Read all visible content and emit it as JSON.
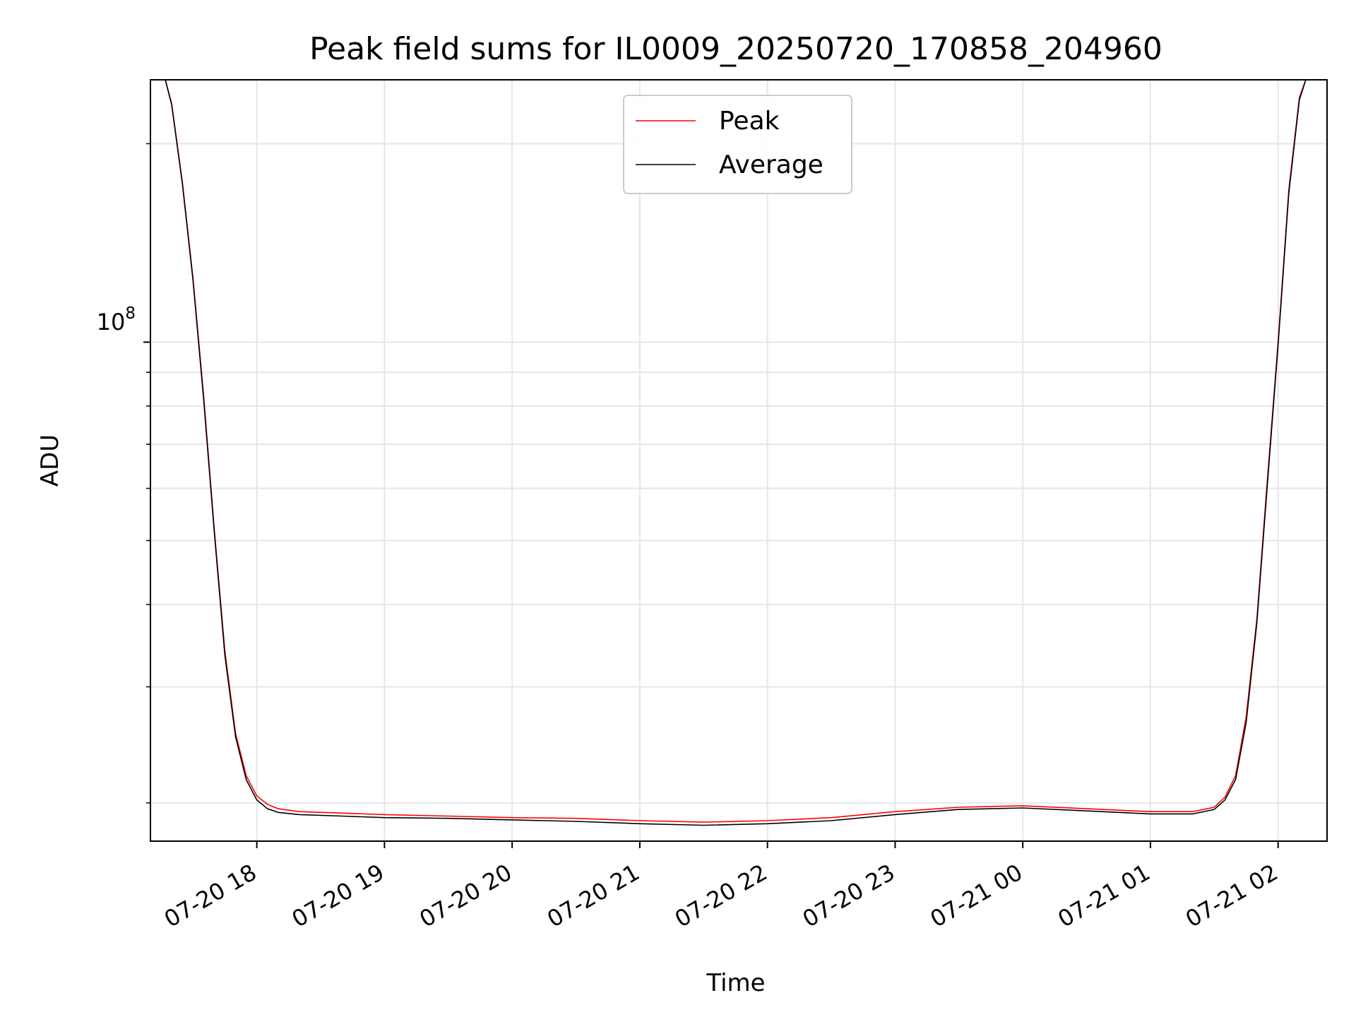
{
  "chart_data": {
    "type": "line",
    "title": "Peak field sums for IL0009_20250720_170858_204960",
    "xlabel": "Time",
    "ylabel": "ADU",
    "yscale": "log",
    "ylim": [
      17500000,
      250000000
    ],
    "xlim": [
      "2025-07-20 17:10",
      "2025-07-21 02:23"
    ],
    "x_ticks": [
      "07-20 18",
      "07-20 19",
      "07-20 20",
      "07-20 21",
      "07-20 22",
      "07-20 23",
      "07-21 00",
      "07-21 01",
      "07-21 02"
    ],
    "y_tick_label": "10",
    "y_tick_label_exp": "8",
    "y_tick_value": 100000000,
    "grid": true,
    "legend_position": "upper center",
    "x": [
      "2025-07-20 17:17",
      "2025-07-20 17:20",
      "2025-07-20 17:25",
      "2025-07-20 17:30",
      "2025-07-20 17:35",
      "2025-07-20 17:40",
      "2025-07-20 17:45",
      "2025-07-20 17:50",
      "2025-07-20 17:55",
      "2025-07-20 18:00",
      "2025-07-20 18:05",
      "2025-07-20 18:10",
      "2025-07-20 18:20",
      "2025-07-20 18:40",
      "2025-07-20 19:00",
      "2025-07-20 19:30",
      "2025-07-20 20:00",
      "2025-07-20 20:30",
      "2025-07-20 21:00",
      "2025-07-20 21:30",
      "2025-07-20 22:00",
      "2025-07-20 22:30",
      "2025-07-20 23:00",
      "2025-07-20 23:30",
      "2025-07-21 00:00",
      "2025-07-21 00:30",
      "2025-07-21 01:00",
      "2025-07-21 01:20",
      "2025-07-21 01:30",
      "2025-07-21 01:35",
      "2025-07-21 01:40",
      "2025-07-21 01:45",
      "2025-07-21 01:50",
      "2025-07-21 01:55",
      "2025-07-21 02:00",
      "2025-07-21 02:05",
      "2025-07-21 02:10",
      "2025-07-21 02:13"
    ],
    "series": [
      {
        "name": "Peak",
        "color": "#ff0000",
        "values": [
          250000000,
          230000000,
          175000000,
          125000000,
          83000000,
          52000000,
          34000000,
          25500000,
          22000000,
          20500000,
          19900000,
          19600000,
          19400000,
          19300000,
          19200000,
          19100000,
          19000000,
          18950000,
          18800000,
          18700000,
          18800000,
          19000000,
          19400000,
          19700000,
          19800000,
          19600000,
          19400000,
          19400000,
          19700000,
          20400000,
          22000000,
          27000000,
          38000000,
          62000000,
          100000000,
          170000000,
          235000000,
          250000000
        ]
      },
      {
        "name": "Average",
        "color": "#000000",
        "values": [
          250000000,
          229000000,
          174000000,
          124000000,
          82000000,
          51500000,
          33500000,
          25200000,
          21700000,
          20200000,
          19600000,
          19350000,
          19200000,
          19100000,
          19000000,
          18950000,
          18850000,
          18750000,
          18600000,
          18500000,
          18600000,
          18800000,
          19200000,
          19550000,
          19650000,
          19450000,
          19250000,
          19250000,
          19550000,
          20200000,
          21700000,
          26500000,
          37500000,
          61000000,
          99000000,
          168000000,
          233000000,
          250000000
        ]
      }
    ]
  }
}
